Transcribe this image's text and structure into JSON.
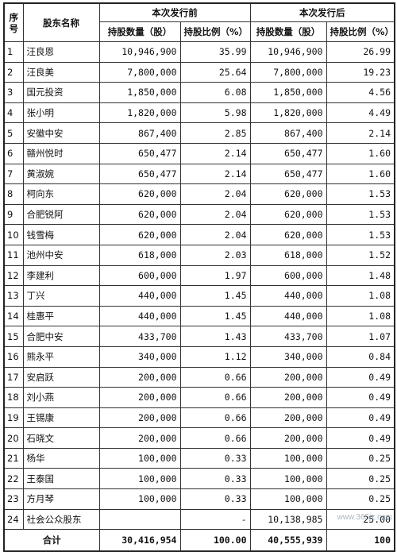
{
  "headers": {
    "seq": "序号",
    "name": "股东名称",
    "before": "本次发行前",
    "after": "本次发行后",
    "shares": "持股数量（股）",
    "ratio": "持股比例（%）"
  },
  "rows": [
    {
      "no": "1",
      "name": "汪良恩",
      "bs": "10,946,900",
      "br": "35.99",
      "as": "10,946,900",
      "ar": "26.99"
    },
    {
      "no": "2",
      "name": "汪良美",
      "bs": "7,800,000",
      "br": "25.64",
      "as": "7,800,000",
      "ar": "19.23"
    },
    {
      "no": "3",
      "name": "国元投资",
      "bs": "1,850,000",
      "br": "6.08",
      "as": "1,850,000",
      "ar": "4.56"
    },
    {
      "no": "4",
      "name": "张小明",
      "bs": "1,820,000",
      "br": "5.98",
      "as": "1,820,000",
      "ar": "4.49"
    },
    {
      "no": "5",
      "name": "安徽中安",
      "bs": "867,400",
      "br": "2.85",
      "as": "867,400",
      "ar": "2.14"
    },
    {
      "no": "6",
      "name": "赣州悦时",
      "bs": "650,477",
      "br": "2.14",
      "as": "650,477",
      "ar": "1.60"
    },
    {
      "no": "7",
      "name": "黄淑婉",
      "bs": "650,477",
      "br": "2.14",
      "as": "650,477",
      "ar": "1.60"
    },
    {
      "no": "8",
      "name": "柯向东",
      "bs": "620,000",
      "br": "2.04",
      "as": "620,000",
      "ar": "1.53"
    },
    {
      "no": "9",
      "name": "合肥锐阿",
      "bs": "620,000",
      "br": "2.04",
      "as": "620,000",
      "ar": "1.53"
    },
    {
      "no": "10",
      "name": "钱雪梅",
      "bs": "620,000",
      "br": "2.04",
      "as": "620,000",
      "ar": "1.53"
    },
    {
      "no": "11",
      "name": "池州中安",
      "bs": "618,000",
      "br": "2.03",
      "as": "618,000",
      "ar": "1.52"
    },
    {
      "no": "12",
      "name": "李建利",
      "bs": "600,000",
      "br": "1.97",
      "as": "600,000",
      "ar": "1.48"
    },
    {
      "no": "13",
      "name": "丁兴",
      "bs": "440,000",
      "br": "1.45",
      "as": "440,000",
      "ar": "1.08"
    },
    {
      "no": "14",
      "name": "桂惠平",
      "bs": "440,000",
      "br": "1.45",
      "as": "440,000",
      "ar": "1.08"
    },
    {
      "no": "15",
      "name": "合肥中安",
      "bs": "433,700",
      "br": "1.43",
      "as": "433,700",
      "ar": "1.07"
    },
    {
      "no": "16",
      "name": "熊永平",
      "bs": "340,000",
      "br": "1.12",
      "as": "340,000",
      "ar": "0.84"
    },
    {
      "no": "17",
      "name": "安启跃",
      "bs": "200,000",
      "br": "0.66",
      "as": "200,000",
      "ar": "0.49"
    },
    {
      "no": "18",
      "name": "刘小燕",
      "bs": "200,000",
      "br": "0.66",
      "as": "200,000",
      "ar": "0.49"
    },
    {
      "no": "19",
      "name": "王锡康",
      "bs": "200,000",
      "br": "0.66",
      "as": "200,000",
      "ar": "0.49"
    },
    {
      "no": "20",
      "name": "石晓文",
      "bs": "200,000",
      "br": "0.66",
      "as": "200,000",
      "ar": "0.49"
    },
    {
      "no": "21",
      "name": "杨华",
      "bs": "100,000",
      "br": "0.33",
      "as": "100,000",
      "ar": "0.25"
    },
    {
      "no": "22",
      "name": "王泰国",
      "bs": "100,000",
      "br": "0.33",
      "as": "100,000",
      "ar": "0.25"
    },
    {
      "no": "23",
      "name": "方月琴",
      "bs": "100,000",
      "br": "0.33",
      "as": "100,000",
      "ar": "0.25"
    },
    {
      "no": "24",
      "name": "社会公众股东",
      "bs": "",
      "br": "-",
      "as": "10,138,985",
      "ar": "25.00"
    }
  ],
  "total": {
    "label": "合计",
    "bs": "30,416,954",
    "br": "100.00",
    "as": "40,555,939",
    "ar": "100"
  },
  "watermark": "www.365jz.com"
}
